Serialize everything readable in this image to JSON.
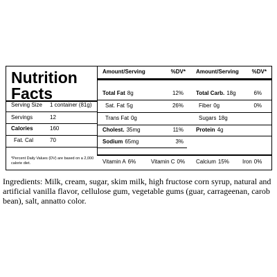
{
  "label": {
    "title_line1": "Nutrition",
    "title_line2": "Facts",
    "serving": [
      {
        "label": "Serving Size",
        "value": "1 container (81g)"
      },
      {
        "label": "Servings",
        "value": "12"
      },
      {
        "label": "Calories",
        "value": "160"
      },
      {
        "label": "Fat. Cal",
        "value": "70"
      }
    ],
    "footnote": "*Percent Daily Values (DV) are based on a 2,000 calorie diet.",
    "header": [
      "Amount/Serving",
      "%DV*",
      "Amount/Serving",
      "%DV*"
    ],
    "rows": [
      [
        {
          "name": "Total Fat",
          "amount": "8g",
          "dv": "12%"
        },
        {
          "name": "Total Carb.",
          "amount": "18g",
          "dv": "6%"
        }
      ],
      [
        {
          "name": "Sat. Fat",
          "amount": "5g",
          "dv": "26%"
        },
        {
          "name": "Fiber",
          "amount": "0g",
          "dv": "0%"
        }
      ],
      [
        {
          "name": "Trans Fat",
          "amount": "0g"
        },
        {
          "name": "Sugars",
          "amount": "18g"
        }
      ],
      [
        {
          "name": "Cholest.",
          "amount": "35mg",
          "dv": "11%"
        },
        {
          "name": "Protein",
          "amount": "4g"
        }
      ],
      [
        {
          "name": "Sodium",
          "amount": "65mg",
          "dv": "3%"
        }
      ]
    ],
    "vitamins": [
      {
        "name": "Vitamin A",
        "value": "6%"
      },
      {
        "name": "Vitamin C",
        "value": "0%"
      },
      {
        "name": "Calcium",
        "value": "15%"
      },
      {
        "name": "Iron",
        "value": "0%"
      }
    ]
  },
  "ingredients": "Ingredients:  Milk, cream, sugar, skim milk, high fructose corn syrup, natural and artificial vanilla flavor, cellulose gum, vegetable gums (guar, carrageenan, carob bean), salt, annatto color."
}
